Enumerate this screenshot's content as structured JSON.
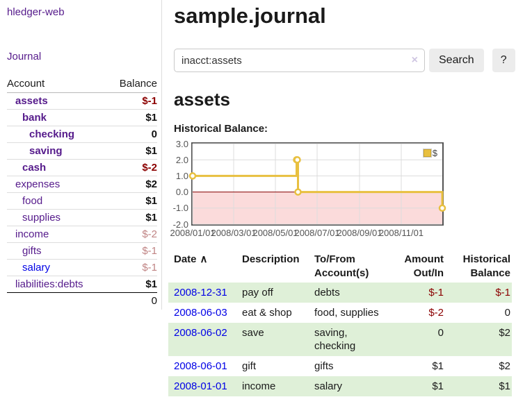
{
  "app": {
    "brand": "hledger-web"
  },
  "sidebar": {
    "journal_link": "Journal",
    "accounts": {
      "headers": {
        "account": "Account",
        "balance": "Balance"
      },
      "rows": [
        {
          "name": "assets",
          "balance": "$-1",
          "depth": 1,
          "bold": true,
          "balance_style": "neg",
          "link_color": "purple"
        },
        {
          "name": "bank",
          "balance": "$1",
          "depth": 2,
          "bold": true,
          "balance_style": "pos",
          "link_color": "purple"
        },
        {
          "name": "checking",
          "balance": "0",
          "depth": 3,
          "bold": true,
          "balance_style": "pos",
          "link_color": "purple"
        },
        {
          "name": "saving",
          "balance": "$1",
          "depth": 3,
          "bold": true,
          "balance_style": "pos",
          "link_color": "purple"
        },
        {
          "name": "cash",
          "balance": "$-2",
          "depth": 2,
          "bold": true,
          "balance_style": "neg",
          "link_color": "purple"
        },
        {
          "name": "expenses",
          "balance": "$2",
          "depth": 1,
          "bold": false,
          "balance_style": "pos",
          "link_color": "purple"
        },
        {
          "name": "food",
          "balance": "$1",
          "depth": 2,
          "bold": false,
          "balance_style": "pos",
          "link_color": "purple"
        },
        {
          "name": "supplies",
          "balance": "$1",
          "depth": 2,
          "bold": false,
          "balance_style": "pos",
          "link_color": "purple"
        },
        {
          "name": "income",
          "balance": "$-2",
          "depth": 1,
          "bold": false,
          "balance_style": "neg-soft",
          "link_color": "purple"
        },
        {
          "name": "gifts",
          "balance": "$-1",
          "depth": 2,
          "bold": false,
          "balance_style": "neg-soft",
          "link_color": "purple"
        },
        {
          "name": "salary",
          "balance": "$-1",
          "depth": 2,
          "bold": false,
          "balance_style": "neg-soft",
          "link_color": "blue"
        },
        {
          "name": "liabilities:debts",
          "balance": "$1",
          "depth": 1,
          "bold": false,
          "balance_style": "pos",
          "link_color": "purple"
        }
      ],
      "total": "0"
    }
  },
  "main": {
    "title": "sample.journal",
    "search": {
      "value": "inacct:assets",
      "clear_icon": "×",
      "button_label": "Search",
      "help_label": "?"
    },
    "account_heading": "assets",
    "chart_label": "Historical Balance:"
  },
  "chart_data": {
    "type": "line",
    "title": "Historical Balance:",
    "x_type": "date",
    "x_range": [
      "2008-01-01",
      "2008-12-31"
    ],
    "ylim": [
      -2,
      3
    ],
    "y_ticks": [
      {
        "value": 3,
        "label": "3.0"
      },
      {
        "value": 2,
        "label": "2.0"
      },
      {
        "value": 1,
        "label": "1.0"
      },
      {
        "value": 0,
        "label": "0.0"
      },
      {
        "value": -1,
        "label": "-1.0"
      },
      {
        "value": -2,
        "label": "-2.0"
      }
    ],
    "x_ticks": [
      {
        "date": "2008-01-01",
        "label": "2008/01/01"
      },
      {
        "date": "2008-03-01",
        "label": "2008/03/01"
      },
      {
        "date": "2008-05-01",
        "label": "2008/05/01"
      },
      {
        "date": "2008-07-01",
        "label": "2008/07/01"
      },
      {
        "date": "2008-09-01",
        "label": "2008/09/01"
      },
      {
        "date": "2008-11-01",
        "label": "2008/11/01"
      }
    ],
    "series": [
      {
        "name": "$",
        "color": "#e8c040",
        "steps": true,
        "points": [
          {
            "date": "2008-01-01",
            "value": 1
          },
          {
            "date": "2008-06-01",
            "value": 2
          },
          {
            "date": "2008-06-02",
            "value": 2
          },
          {
            "date": "2008-06-03",
            "value": 0
          },
          {
            "date": "2008-12-31",
            "value": -1
          }
        ]
      }
    ],
    "legend": {
      "position": "top-right"
    },
    "styles": {
      "negative_fill": "#fbdbdb",
      "zero_line": "#8b0000",
      "grid": "#dcdcdc",
      "border": "#545454",
      "axis_text": "#545454"
    }
  },
  "register": {
    "headers": {
      "date": "Date",
      "sort_icon": "∧",
      "description": "Description",
      "accounts": "To/From Account(s)",
      "amount": "Amount Out/In",
      "balance": "Historical Balance"
    },
    "rows": [
      {
        "date": "2008-12-31",
        "description": "pay off",
        "accounts": "debts",
        "amount": "$-1",
        "amount_negative": true,
        "balance": "$-1",
        "balance_negative": true,
        "green": true
      },
      {
        "date": "2008-06-03",
        "description": "eat & shop",
        "accounts": "food, supplies",
        "amount": "$-2",
        "amount_negative": true,
        "balance": "0",
        "balance_negative": false,
        "green": false
      },
      {
        "date": "2008-06-02",
        "description": "save",
        "accounts": "saving, checking",
        "amount": "0",
        "amount_negative": false,
        "balance": "$2",
        "balance_negative": false,
        "green": true
      },
      {
        "date": "2008-06-01",
        "description": "gift",
        "accounts": "gifts",
        "amount": "$1",
        "amount_negative": false,
        "balance": "$2",
        "balance_negative": false,
        "green": false
      },
      {
        "date": "2008-01-01",
        "description": "income",
        "accounts": "salary",
        "amount": "$1",
        "amount_negative": false,
        "balance": "$1",
        "balance_negative": false,
        "green": true
      }
    ]
  }
}
